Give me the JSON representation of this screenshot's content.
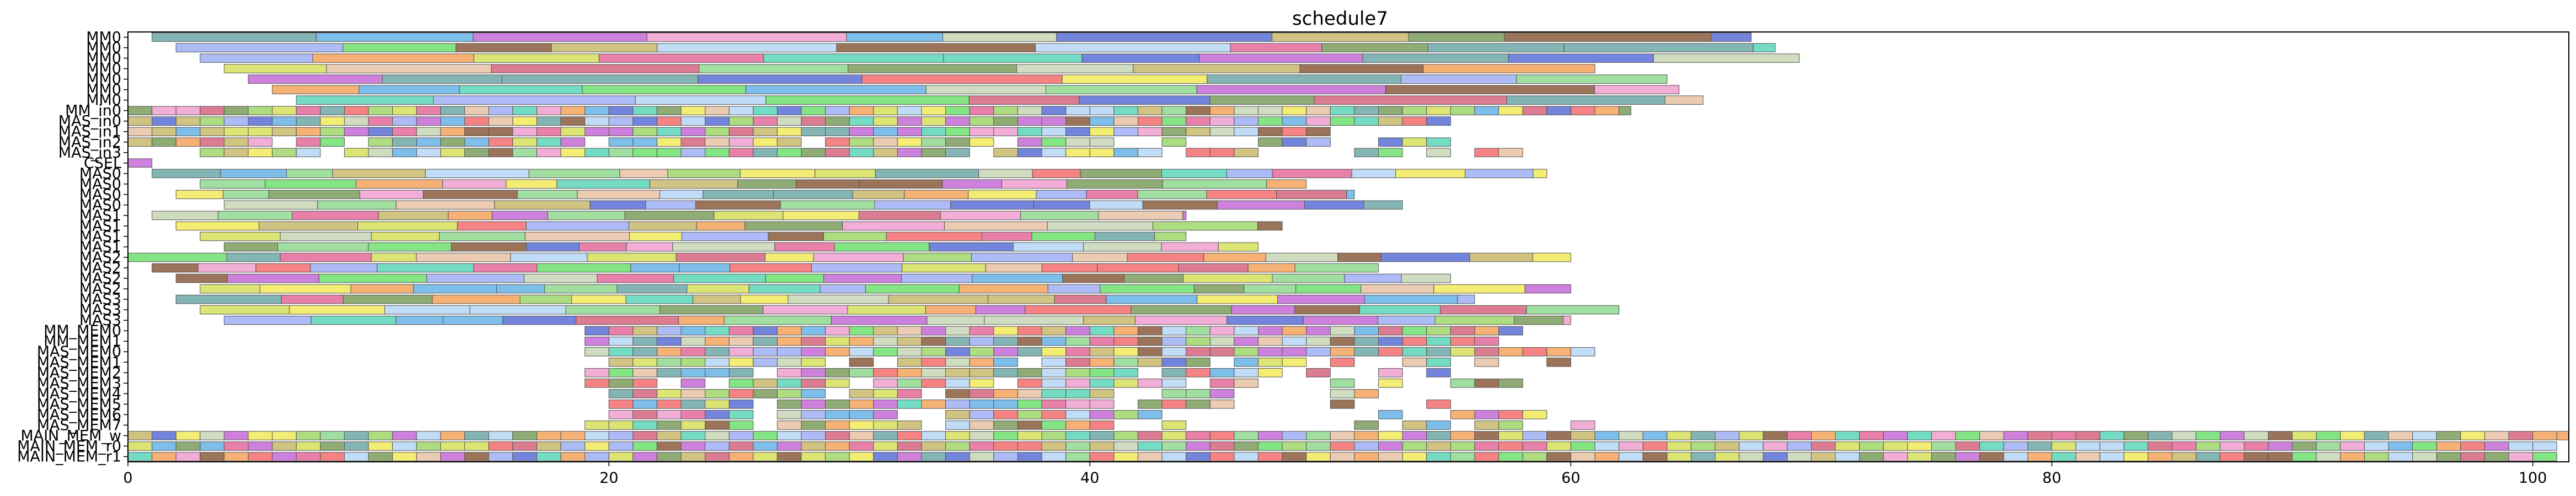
{
  "chart_data": {
    "type": "gantt",
    "title": "schedule7",
    "xlabel": "",
    "ylabel": "",
    "xlim": [
      0,
      101.5
    ],
    "xticks": [
      0,
      20,
      40,
      60,
      80,
      100
    ],
    "grid": false,
    "rows": [
      "MM0",
      "MM0",
      "MM0",
      "MM0",
      "MM0",
      "MM0",
      "MM0",
      "MM_in0",
      "MAS_in0",
      "MAS_in1",
      "MAS_in2",
      "MAS_in3",
      "CSEL",
      "MAS0",
      "MAS0",
      "MAS0",
      "MAS0",
      "MAS1",
      "MAS1",
      "MAS1",
      "MAS1",
      "MAS2",
      "MAS2",
      "MAS2",
      "MAS2",
      "MAS3",
      "MAS3",
      "MAS3",
      "MM_MEM0",
      "MM_MEM1",
      "MAS_MEM0",
      "MAS_MEM1",
      "MAS_MEM2",
      "MAS_MEM3",
      "MAS_MEM4",
      "MAS_MEM5",
      "MAS_MEM6",
      "MAS_MEM7",
      "MAIN_MEM_w",
      "MAIN_MEM_r0",
      "MAIN_MEM_r1"
    ],
    "row_extents": [
      {
        "pattern": "long",
        "start": 1,
        "end": 67.5,
        "w": 6
      },
      {
        "pattern": "long",
        "start": 2,
        "end": 68.5,
        "w": 6
      },
      {
        "pattern": "long",
        "start": 3,
        "end": 69.5,
        "w": 6
      },
      {
        "pattern": "long",
        "start": 4,
        "end": 61,
        "w": 6
      },
      {
        "pattern": "long",
        "start": 5,
        "end": 64,
        "w": 6
      },
      {
        "pattern": "long",
        "start": 6,
        "end": 64.5,
        "w": 6
      },
      {
        "pattern": "long",
        "start": 7,
        "end": 65.5,
        "w": 6
      },
      {
        "pattern": "short",
        "start": 0,
        "end": 62.5,
        "w": 1
      },
      {
        "pattern": "short",
        "start": 0,
        "end": 55,
        "w": 1
      },
      {
        "pattern": "short",
        "start": 0,
        "end": 50,
        "w": 1
      },
      {
        "pattern": "sparse",
        "start": 0,
        "end": 58,
        "w": 1
      },
      {
        "pattern": "sparse",
        "start": 0,
        "end": 58,
        "w": 1
      },
      {
        "pattern": "short",
        "start": 0,
        "end": 1,
        "w": 1
      },
      {
        "pattern": "long",
        "start": 1,
        "end": 59,
        "w": 3
      },
      {
        "pattern": "long",
        "start": 3,
        "end": 49,
        "w": 3
      },
      {
        "pattern": "long",
        "start": 2,
        "end": 51,
        "w": 3
      },
      {
        "pattern": "long",
        "start": 4,
        "end": 53,
        "w": 3
      },
      {
        "pattern": "long",
        "start": 1,
        "end": 44,
        "w": 3
      },
      {
        "pattern": "long",
        "start": 2,
        "end": 48,
        "w": 3
      },
      {
        "pattern": "long",
        "start": 3,
        "end": 44,
        "w": 3
      },
      {
        "pattern": "long",
        "start": 4,
        "end": 47,
        "w": 3
      },
      {
        "pattern": "long",
        "start": 0,
        "end": 60,
        "w": 3
      },
      {
        "pattern": "long",
        "start": 1,
        "end": 52,
        "w": 3
      },
      {
        "pattern": "long",
        "start": 2,
        "end": 55,
        "w": 3
      },
      {
        "pattern": "long",
        "start": 3,
        "end": 60,
        "w": 3
      },
      {
        "pattern": "long",
        "start": 2,
        "end": 56,
        "w": 3
      },
      {
        "pattern": "long",
        "start": 3,
        "end": 62,
        "w": 3
      },
      {
        "pattern": "long",
        "start": 4,
        "end": 60,
        "w": 3
      },
      {
        "pattern": "short",
        "start": 19,
        "end": 58,
        "w": 1
      },
      {
        "pattern": "short",
        "start": 19,
        "end": 57,
        "w": 1
      },
      {
        "pattern": "short",
        "start": 19,
        "end": 61,
        "w": 1
      },
      {
        "pattern": "sparse",
        "start": 20,
        "end": 62.5,
        "w": 1
      },
      {
        "pattern": "sparse",
        "start": 19,
        "end": 57,
        "w": 1
      },
      {
        "pattern": "sparse",
        "start": 19,
        "end": 58,
        "w": 1
      },
      {
        "pattern": "sparse",
        "start": 20,
        "end": 58,
        "w": 1
      },
      {
        "pattern": "sparse",
        "start": 20,
        "end": 56,
        "w": 1
      },
      {
        "pattern": "sparse",
        "start": 20,
        "end": 59,
        "w": 1
      },
      {
        "pattern": "sparse",
        "start": 19,
        "end": 62,
        "w": 1
      },
      {
        "pattern": "short",
        "start": 0,
        "end": 101.5,
        "w": 1
      },
      {
        "pattern": "short",
        "start": 0,
        "end": 101,
        "w": 1
      },
      {
        "pattern": "short",
        "start": 0,
        "end": 101,
        "w": 1
      }
    ],
    "palette": [
      "#c9b86b",
      "#5b6fd6",
      "#a0d66b",
      "#f2ea5c",
      "#c8d6b5",
      "#d6657f",
      "#6fa8a8",
      "#e46a9b",
      "#8fd98f",
      "#f5a35c",
      "#9fb0f5",
      "#c66bd6",
      "#5cd6b8",
      "#e8c2a5",
      "#7a9e5c",
      "#f56d6d",
      "#b5d6f5",
      "#8a5c3d",
      "#d6e05c",
      "#6de06d",
      "#f0a0d0",
      "#66b3e6"
    ]
  }
}
